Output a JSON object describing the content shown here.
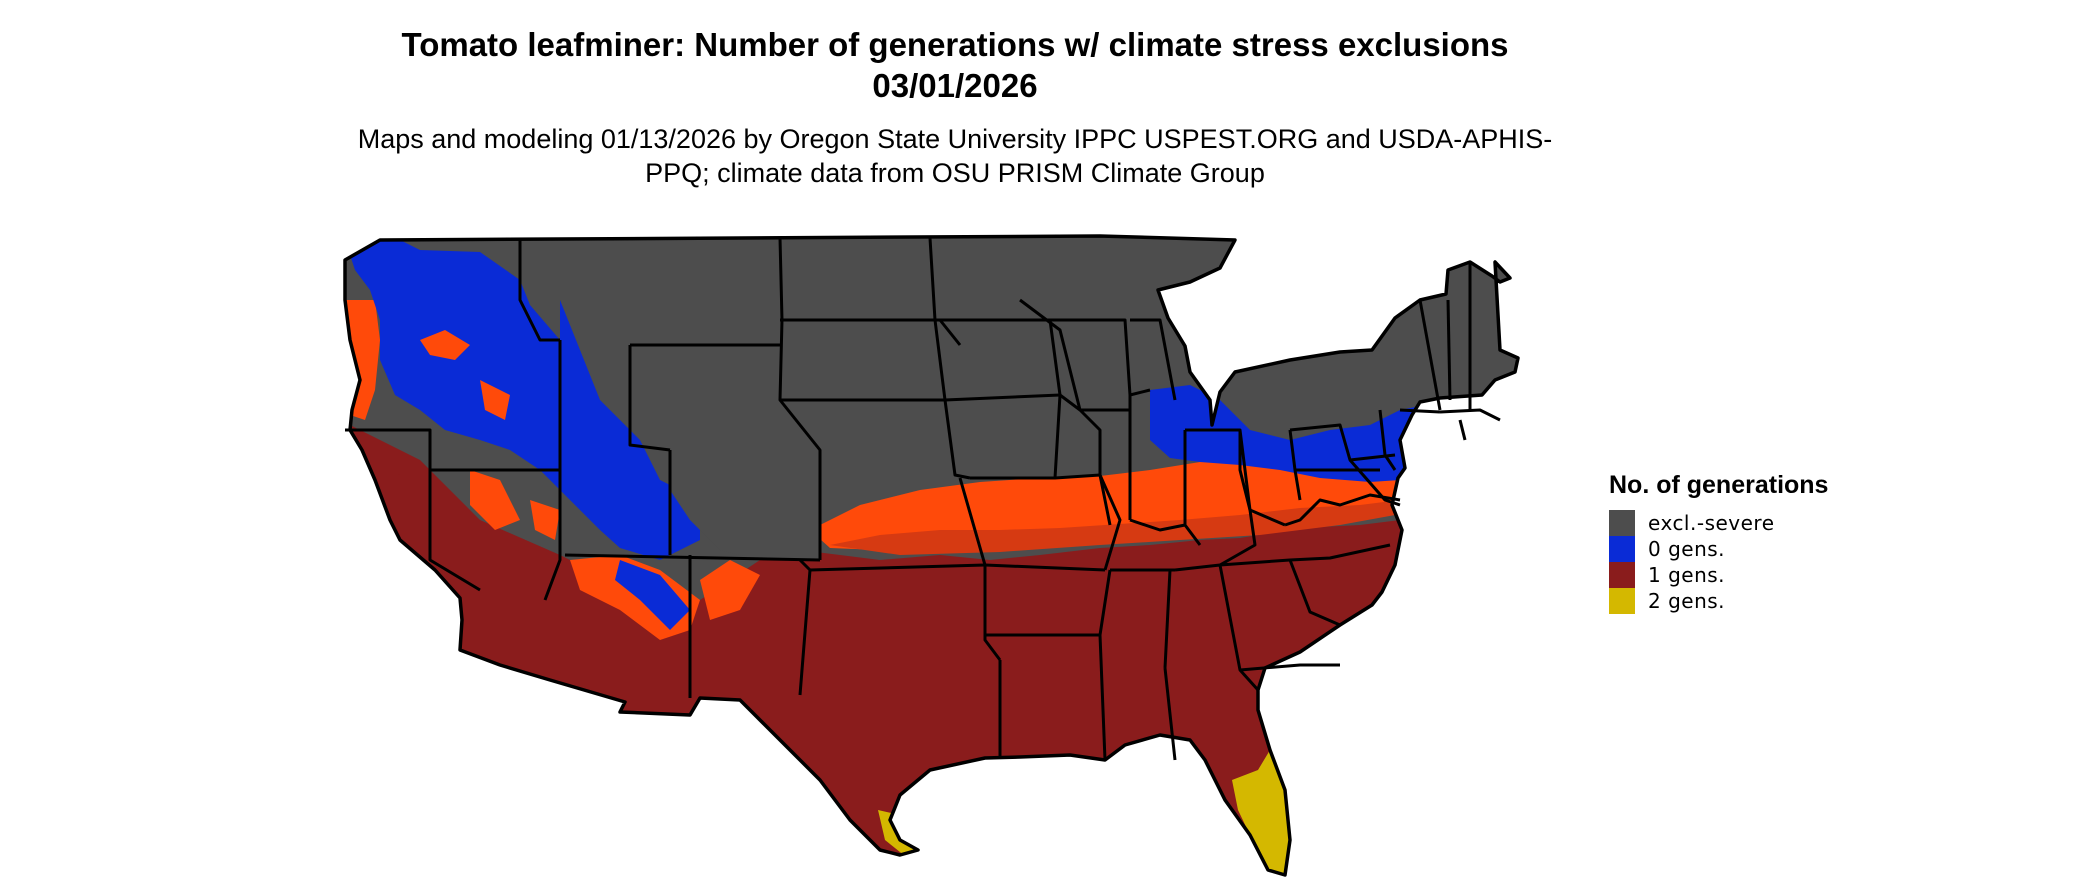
{
  "map": {
    "title": "Tomato leafminer: Number of generations w/ climate stress exclusions 03/01/2026",
    "subtitle": "Maps and modeling 01/13/2026 by Oregon State University IPPC USPEST.ORG and USDA-APHIS-PPQ; climate data from OSU PRISM Climate Group",
    "region": "Contiguous United States",
    "border_color": "#000000"
  },
  "legend": {
    "title": "No. of generations",
    "items": [
      {
        "label": "excl.-severe",
        "color": "#4d4d4d"
      },
      {
        "label": "0 gens.",
        "color": "#0a2bd6"
      },
      {
        "label": "1 gens.",
        "color": "#8a1c1c"
      },
      {
        "label": "2 gens.",
        "color": "#d4b800"
      }
    ],
    "transition_color": "#ff4a0a"
  }
}
